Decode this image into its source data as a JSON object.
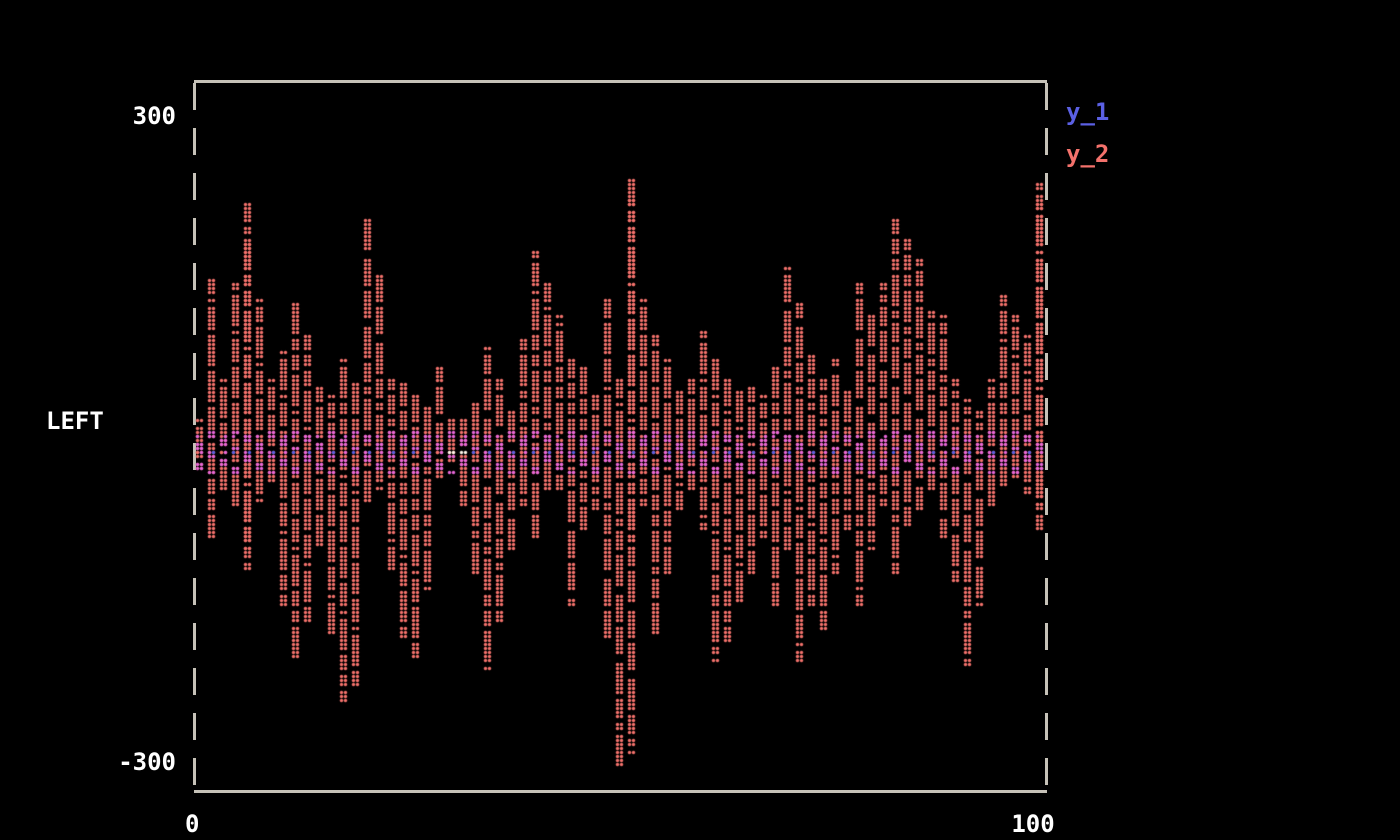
{
  "page": {
    "background": "#000000",
    "border_color": "#c6c2b8",
    "text_color": "#ffffff"
  },
  "axis": {
    "ytick_top": "300",
    "ytick_bottom": "-300",
    "ylabel": "LEFT",
    "xtick_left": "0",
    "xtick_right": "100"
  },
  "legend": {
    "items": [
      {
        "label": "y_1",
        "color": "#5b60e4"
      },
      {
        "label": "y_2",
        "color": "#f4726c"
      }
    ]
  },
  "chart_data": {
    "type": "scatter",
    "title": "",
    "xlabel": "",
    "ylabel": "LEFT",
    "xlim": [
      0,
      100
    ],
    "ylim": [
      -300,
      300
    ],
    "xtick_labels": [
      "0",
      "100"
    ],
    "ytick_labels": [
      "300",
      "-300"
    ],
    "grid": false,
    "legend_position": "outside-top-right",
    "marker": "braille-dot",
    "background": "#000000",
    "series": [
      {
        "name": "y_1",
        "color": "#5b60e4",
        "overlap_color": "#e867d9",
        "white_overlap_color": "#fff8ea",
        "description": "noisy near-zero line sampled densely across x; quantized to dot rows at y=-8 and y=+5",
        "baseline_y": -8,
        "upper_y": 5,
        "x_start": 0,
        "x_end": 100,
        "x_step": 0.7,
        "upper_segments": [
          [
            28.5,
            33
          ],
          [
            44,
            46.5
          ],
          [
            54,
            57
          ],
          [
            61.5,
            66
          ],
          [
            74,
            76.5
          ],
          [
            86.5,
            89.5
          ],
          [
            92.5,
            96
          ]
        ],
        "white_overlap_segment": [
          29,
          31.8
        ]
      },
      {
        "name": "y_2",
        "color": "#f4726c",
        "overlap_color": "#e867d9",
        "description": "high-frequency oscillation; each entry is one dot-column [x, y_max, y_min] estimated from the plot",
        "columns": [
          [
            0.5,
            25,
            -25
          ],
          [
            1.8,
            155,
            -87
          ],
          [
            3.2,
            60,
            -45
          ],
          [
            4.9,
            150,
            -60
          ],
          [
            6.2,
            228,
            -119
          ],
          [
            7.0,
            185,
            -100
          ],
          [
            8.2,
            135,
            -60
          ],
          [
            9.6,
            60,
            -35
          ],
          [
            11.0,
            85,
            -150
          ],
          [
            12.4,
            135,
            -200
          ],
          [
            13.8,
            100,
            -170
          ],
          [
            15.2,
            58,
            -100
          ],
          [
            16.6,
            45,
            -180
          ],
          [
            18.0,
            80,
            -242
          ],
          [
            19.4,
            60,
            -228
          ],
          [
            20.6,
            208,
            -60
          ],
          [
            22.0,
            160,
            -45
          ],
          [
            23.3,
            60,
            -120
          ],
          [
            24.7,
            58,
            -180
          ],
          [
            26.1,
            45,
            -200
          ],
          [
            27.5,
            35,
            -140
          ],
          [
            28.9,
            71,
            -35
          ],
          [
            30.3,
            22,
            -18
          ],
          [
            31.7,
            28,
            -60
          ],
          [
            33.1,
            45,
            -120
          ],
          [
            34.5,
            90,
            -210
          ],
          [
            35.9,
            60,
            -170
          ],
          [
            37.3,
            35,
            -100
          ],
          [
            38.7,
            100,
            -60
          ],
          [
            40.1,
            180,
            -90
          ],
          [
            41.5,
            150,
            -50
          ],
          [
            42.9,
            120,
            -42
          ],
          [
            44.3,
            80,
            -150
          ],
          [
            45.7,
            70,
            -80
          ],
          [
            47.1,
            45,
            -62
          ],
          [
            48.5,
            135,
            -180
          ],
          [
            49.4,
            60,
            -300
          ],
          [
            50.7,
            245,
            -288
          ],
          [
            51.5,
            228,
            -100
          ],
          [
            52.9,
            140,
            -60
          ],
          [
            54.3,
            100,
            -184
          ],
          [
            55.7,
            80,
            -122
          ],
          [
            57.1,
            50,
            -62
          ],
          [
            58.5,
            62,
            -42
          ],
          [
            59.6,
            104,
            -80
          ],
          [
            61.0,
            80,
            -205
          ],
          [
            62.4,
            62,
            -184
          ],
          [
            63.8,
            52,
            -150
          ],
          [
            65.2,
            55,
            -122
          ],
          [
            66.6,
            46,
            -90
          ],
          [
            68.0,
            72,
            -152
          ],
          [
            69.4,
            166,
            -100
          ],
          [
            70.8,
            130,
            -205
          ],
          [
            72.2,
            82,
            -150
          ],
          [
            73.6,
            62,
            -175
          ],
          [
            75.0,
            78,
            -120
          ],
          [
            76.4,
            52,
            -82
          ],
          [
            77.8,
            148,
            -150
          ],
          [
            79.2,
            120,
            -100
          ],
          [
            80.6,
            150,
            -62
          ],
          [
            82.0,
            208,
            -122
          ],
          [
            83.4,
            190,
            -82
          ],
          [
            84.8,
            171,
            -62
          ],
          [
            86.2,
            122,
            -42
          ],
          [
            87.6,
            120,
            -90
          ],
          [
            89.0,
            62,
            -130
          ],
          [
            90.4,
            42,
            -208
          ],
          [
            91.8,
            32,
            -150
          ],
          [
            93.2,
            62,
            -62
          ],
          [
            94.6,
            138,
            -42
          ],
          [
            96.0,
            120,
            -32
          ],
          [
            97.4,
            100,
            -52
          ],
          [
            98.8,
            242,
            -82
          ],
          [
            99.7,
            225,
            -60
          ]
        ]
      }
    ]
  }
}
